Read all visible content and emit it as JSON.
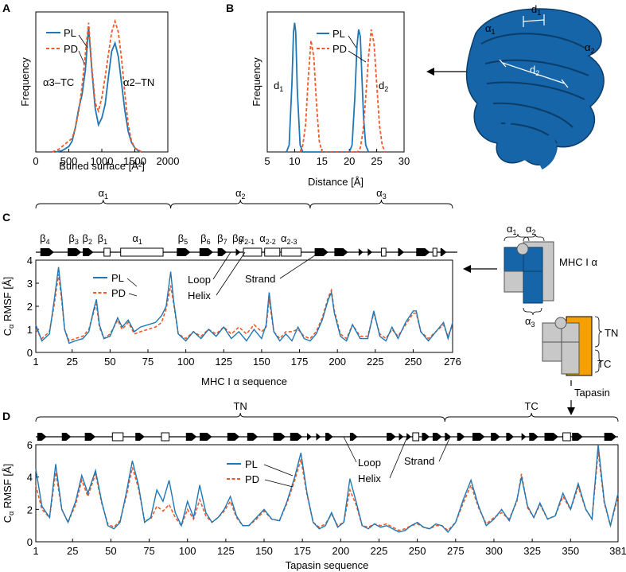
{
  "colors": {
    "pl": "#1f77b4",
    "pd": "#ef5a28",
    "protein": "#1565a8",
    "tapasin": "#f5a000",
    "grey": "#c8c8c8"
  },
  "chart_data": [
    {
      "panel": "A",
      "type": "line",
      "xlabel": "Buried surface [Å²]",
      "ylabel": "Frequency",
      "xlim": [
        0,
        2000
      ],
      "xticks": [
        "0",
        "500",
        "1000",
        "1500",
        "2000"
      ],
      "legend": [
        "PL",
        "PD"
      ],
      "annotations": [
        "α3–TC",
        "α2–TN"
      ],
      "series": [
        {
          "name": "PL",
          "x": [
            300,
            400,
            500,
            550,
            600,
            650,
            700,
            750,
            800,
            850,
            900,
            950,
            1000,
            1050,
            1100,
            1150,
            1200,
            1250,
            1300,
            1350,
            1400,
            1450,
            1500,
            1550,
            1600
          ],
          "y": [
            0,
            0.01,
            0.04,
            0.08,
            0.18,
            0.32,
            0.42,
            0.6,
            0.92,
            0.6,
            0.32,
            0.2,
            0.25,
            0.35,
            0.55,
            0.74,
            0.8,
            0.7,
            0.5,
            0.3,
            0.15,
            0.07,
            0.03,
            0.01,
            0
          ]
        },
        {
          "name": "PD",
          "x": [
            250,
            350,
            450,
            550,
            600,
            650,
            700,
            750,
            800,
            850,
            900,
            950,
            1000,
            1050,
            1100,
            1150,
            1200,
            1250,
            1300,
            1350,
            1400,
            1450,
            1500,
            1600
          ],
          "y": [
            0,
            0.02,
            0.06,
            0.1,
            0.18,
            0.3,
            0.48,
            0.72,
            0.95,
            0.62,
            0.36,
            0.3,
            0.4,
            0.55,
            0.72,
            0.88,
            0.96,
            0.88,
            0.68,
            0.42,
            0.2,
            0.08,
            0.03,
            0
          ]
        }
      ]
    },
    {
      "panel": "B",
      "type": "line",
      "xlabel": "Distance [Å]",
      "ylabel": "Frequency",
      "xlim": [
        5,
        30
      ],
      "xticks": [
        "5",
        "10",
        "15",
        "20",
        "25",
        "30"
      ],
      "legend": [
        "PL",
        "PD"
      ],
      "annotations": [
        "d1",
        "d2"
      ],
      "series": [
        {
          "name": "PL",
          "x": [
            8.5,
            9,
            9.5,
            9.8,
            10,
            10.2,
            10.5,
            11,
            11.5,
            20,
            20.5,
            21,
            21.4,
            21.7,
            22,
            22.3,
            22.6,
            23,
            23.5
          ],
          "y": [
            0,
            0.05,
            0.5,
            0.88,
            0.95,
            0.88,
            0.45,
            0.05,
            0,
            0,
            0.05,
            0.4,
            0.78,
            0.9,
            0.85,
            0.55,
            0.25,
            0.05,
            0
          ]
        },
        {
          "name": "PD",
          "x": [
            11,
            11.5,
            12,
            12.5,
            13,
            13.5,
            14,
            14.5,
            15,
            21.5,
            22,
            22.5,
            23,
            23.5,
            24,
            24.5,
            25,
            25.5,
            26,
            26.5
          ],
          "y": [
            0,
            0.05,
            0.2,
            0.55,
            0.82,
            0.7,
            0.35,
            0.08,
            0,
            0,
            0.03,
            0.15,
            0.4,
            0.7,
            0.9,
            0.8,
            0.5,
            0.2,
            0.05,
            0
          ]
        }
      ]
    },
    {
      "panel": "C",
      "type": "line",
      "xlabel": "MHC I α sequence",
      "ylabel": "Cα RMSF [Å]",
      "xlim": [
        1,
        276
      ],
      "ylim": [
        0,
        4
      ],
      "xticks": [
        "1",
        "25",
        "50",
        "75",
        "100",
        "125",
        "150",
        "175",
        "200",
        "225",
        "250",
        "276"
      ],
      "yticks": [
        "0",
        "1",
        "2",
        "3",
        "4"
      ],
      "legend": [
        "PL",
        "PD"
      ],
      "domains": [
        "α1",
        "α2",
        "α3"
      ],
      "topology_labels": [
        "β4",
        "β3",
        "β2",
        "β1",
        "α1",
        "β5",
        "β6",
        "β7",
        "β8",
        "α2-1",
        "α2-2",
        "α2-3"
      ],
      "callouts": [
        "Loop",
        "Helix",
        "Strand"
      ],
      "series": [
        {
          "name": "PL",
          "x": [
            1,
            5,
            10,
            13,
            16,
            18,
            20,
            23,
            27,
            32,
            36,
            39,
            41,
            43,
            46,
            50,
            55,
            58,
            62,
            66,
            70,
            75,
            80,
            84,
            87,
            90,
            92,
            95,
            100,
            105,
            110,
            115,
            120,
            125,
            130,
            135,
            140,
            145,
            150,
            153,
            155,
            158,
            162,
            166,
            170,
            174,
            178,
            182,
            186,
            190,
            194,
            196,
            198,
            202,
            206,
            210,
            215,
            220,
            224,
            228,
            232,
            236,
            240,
            245,
            250,
            252,
            255,
            260,
            265,
            270,
            273,
            276
          ],
          "y": [
            1.2,
            0.5,
            0.8,
            2.2,
            3.7,
            2.5,
            1.0,
            0.4,
            0.5,
            0.6,
            0.9,
            1.8,
            2.3,
            1.2,
            0.6,
            0.7,
            1.5,
            1.1,
            1.4,
            0.9,
            1.1,
            1.2,
            1.3,
            1.6,
            2.0,
            3.5,
            2.2,
            0.8,
            0.5,
            0.9,
            0.6,
            1.0,
            0.7,
            1.1,
            0.6,
            0.9,
            0.5,
            1.0,
            0.6,
            1.2,
            2.6,
            0.9,
            0.5,
            0.8,
            0.5,
            1.1,
            0.6,
            0.5,
            0.8,
            1.4,
            2.3,
            2.6,
            1.7,
            0.7,
            0.5,
            1.2,
            0.6,
            0.6,
            1.8,
            0.7,
            0.5,
            1.1,
            0.6,
            1.3,
            1.8,
            1.8,
            0.9,
            0.5,
            0.9,
            1.3,
            0.6,
            1.3
          ]
        },
        {
          "name": "PD",
          "x": [
            1,
            5,
            10,
            13,
            16,
            18,
            20,
            23,
            27,
            32,
            36,
            39,
            41,
            43,
            46,
            50,
            55,
            58,
            62,
            66,
            70,
            75,
            80,
            84,
            87,
            90,
            92,
            95,
            100,
            105,
            110,
            115,
            120,
            125,
            130,
            135,
            140,
            145,
            150,
            153,
            155,
            158,
            162,
            166,
            170,
            174,
            178,
            182,
            186,
            190,
            194,
            196,
            198,
            202,
            206,
            210,
            215,
            220,
            224,
            228,
            232,
            236,
            240,
            245,
            250,
            252,
            255,
            260,
            265,
            270,
            273,
            276
          ],
          "y": [
            1.0,
            0.6,
            0.9,
            2.0,
            3.4,
            2.3,
            1.0,
            0.5,
            0.6,
            0.7,
            1.0,
            1.7,
            2.1,
            1.1,
            0.6,
            0.8,
            1.4,
            1.0,
            1.3,
            0.8,
            0.9,
            1.0,
            1.1,
            1.3,
            1.9,
            2.9,
            2.1,
            0.8,
            0.6,
            0.9,
            0.7,
            1.0,
            0.8,
            1.1,
            0.8,
            1.1,
            0.8,
            1.2,
            0.9,
            1.1,
            2.3,
            0.9,
            0.6,
            0.9,
            0.9,
            1.0,
            0.7,
            0.6,
            0.9,
            1.5,
            2.4,
            2.7,
            1.8,
            0.8,
            0.6,
            1.2,
            0.7,
            0.7,
            1.7,
            0.8,
            0.6,
            1.0,
            0.7,
            1.2,
            1.7,
            1.7,
            0.9,
            0.6,
            0.9,
            1.2,
            0.7,
            1.2
          ]
        }
      ]
    },
    {
      "panel": "D",
      "type": "line",
      "xlabel": "Tapasin sequence",
      "ylabel": "Cα RMSF [Å]",
      "xlim": [
        1,
        381
      ],
      "ylim": [
        0,
        6
      ],
      "xticks": [
        "1",
        "25",
        "50",
        "75",
        "100",
        "125",
        "150",
        "175",
        "200",
        "225",
        "250",
        "275",
        "300",
        "325",
        "350",
        "381"
      ],
      "yticks": [
        "0",
        "2",
        "4",
        "6"
      ],
      "legend": [
        "PL",
        "PD"
      ],
      "domains": [
        "TN",
        "TC"
      ],
      "callouts": [
        "Loop",
        "Helix",
        "Strand"
      ],
      "series": [
        {
          "name": "PL",
          "x": [
            1,
            5,
            10,
            14,
            18,
            22,
            27,
            31,
            35,
            40,
            44,
            48,
            52,
            56,
            60,
            64,
            68,
            72,
            76,
            80,
            84,
            88,
            92,
            96,
            100,
            104,
            108,
            112,
            116,
            120,
            124,
            128,
            132,
            136,
            140,
            145,
            150,
            155,
            160,
            165,
            170,
            174,
            178,
            182,
            186,
            190,
            194,
            198,
            202,
            206,
            210,
            214,
            218,
            222,
            226,
            230,
            234,
            238,
            242,
            246,
            250,
            254,
            258,
            262,
            266,
            270,
            275,
            280,
            285,
            290,
            295,
            300,
            305,
            310,
            315,
            318,
            322,
            326,
            330,
            335,
            340,
            345,
            350,
            355,
            360,
            364,
            368,
            372,
            376,
            381
          ],
          "y": [
            4.5,
            2.2,
            1.5,
            4.8,
            2.0,
            1.2,
            2.5,
            4.1,
            3.0,
            4.4,
            2.5,
            1.0,
            0.8,
            1.2,
            3.0,
            5.0,
            3.5,
            1.2,
            1.5,
            3.2,
            2.5,
            3.8,
            1.8,
            1.0,
            2.5,
            1.5,
            3.5,
            1.8,
            1.2,
            1.5,
            2.0,
            2.8,
            1.6,
            1.0,
            1.0,
            1.5,
            2.0,
            1.4,
            1.3,
            2.5,
            4.0,
            5.5,
            3.0,
            1.2,
            0.8,
            1.0,
            1.8,
            0.9,
            1.2,
            3.9,
            2.5,
            1.0,
            0.8,
            1.1,
            0.9,
            1.0,
            0.8,
            0.6,
            0.7,
            1.0,
            1.2,
            0.9,
            0.8,
            1.1,
            1.0,
            0.6,
            1.2,
            2.6,
            3.8,
            2.2,
            1.0,
            1.4,
            2.0,
            1.3,
            2.6,
            4.0,
            2.2,
            1.5,
            2.4,
            1.4,
            1.6,
            3.0,
            2.0,
            3.6,
            2.0,
            1.4,
            6.0,
            2.5,
            1.0,
            3.0
          ]
        },
        {
          "name": "PD",
          "x": [
            1,
            5,
            10,
            14,
            18,
            22,
            27,
            31,
            35,
            40,
            44,
            48,
            52,
            56,
            60,
            64,
            68,
            72,
            76,
            80,
            84,
            88,
            92,
            96,
            100,
            104,
            108,
            112,
            116,
            120,
            124,
            128,
            132,
            136,
            140,
            145,
            150,
            155,
            160,
            165,
            170,
            174,
            178,
            182,
            186,
            190,
            194,
            198,
            202,
            206,
            210,
            214,
            218,
            222,
            226,
            230,
            234,
            238,
            242,
            246,
            250,
            254,
            258,
            262,
            266,
            270,
            275,
            280,
            285,
            290,
            295,
            300,
            305,
            310,
            315,
            318,
            322,
            326,
            330,
            335,
            340,
            345,
            350,
            355,
            360,
            364,
            368,
            372,
            376,
            381
          ],
          "y": [
            3.5,
            2.0,
            1.5,
            4.3,
            2.0,
            1.2,
            2.3,
            3.8,
            2.8,
            4.2,
            2.4,
            1.1,
            0.9,
            1.3,
            2.8,
            4.6,
            3.3,
            1.3,
            1.4,
            2.2,
            1.9,
            2.3,
            1.5,
            1.0,
            2.0,
            1.4,
            2.6,
            1.6,
            1.2,
            1.5,
            1.9,
            2.5,
            1.5,
            1.0,
            1.0,
            1.4,
            1.9,
            1.4,
            1.3,
            2.4,
            3.8,
            5.1,
            2.9,
            1.2,
            0.9,
            1.1,
            1.7,
            1.0,
            1.2,
            3.2,
            2.3,
            1.0,
            0.9,
            1.1,
            1.0,
            1.1,
            0.9,
            0.7,
            0.8,
            1.0,
            1.1,
            0.9,
            0.8,
            1.0,
            1.0,
            0.7,
            1.2,
            2.4,
            3.5,
            2.1,
            1.1,
            1.5,
            1.8,
            1.4,
            2.5,
            4.2,
            2.1,
            1.5,
            2.3,
            1.4,
            1.6,
            2.8,
            2.0,
            3.4,
            2.0,
            1.4,
            5.6,
            2.4,
            1.0,
            2.8
          ]
        }
      ]
    }
  ],
  "labels": {
    "panel_A": "A",
    "panel_B": "B",
    "panel_C": "C",
    "panel_D": "D",
    "structure_alpha1": "α",
    "structure_alpha1_sub": "1",
    "structure_alpha2": "α",
    "structure_alpha2_sub": "2",
    "structure_d1": "d",
    "structure_d1_sub": "1",
    "structure_d2": "d",
    "structure_d2_sub": "2",
    "schematic_a1": "α",
    "schematic_a1_sub": "1",
    "schematic_a2": "α",
    "schematic_a2_sub": "2",
    "schematic_a3": "α",
    "schematic_a3_sub": "3",
    "schematic_mhc": "MHC I α",
    "schematic_tn": "TN",
    "schematic_tc": "TC",
    "schematic_tapasin": "Tapasin"
  }
}
